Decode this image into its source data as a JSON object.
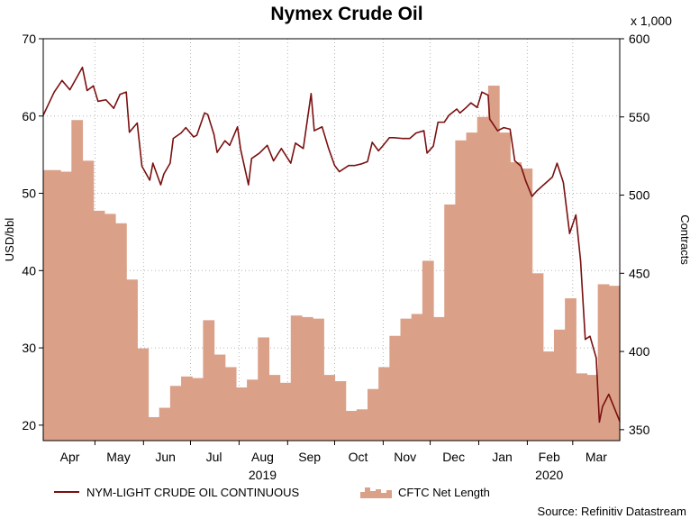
{
  "chart_data": {
    "type": "line+bar",
    "title": "Nymex Crude Oil",
    "left_axis": {
      "label": "USD/bbl",
      "range": [
        18,
        70
      ],
      "ticks": [
        20,
        30,
        40,
        50,
        60,
        70
      ]
    },
    "right_axis": {
      "label": "Contracts",
      "multiplier_label": "x 1,000",
      "range": [
        343,
        600
      ],
      "ticks": [
        350,
        400,
        450,
        500,
        550,
        600
      ]
    },
    "x_axis": {
      "start": "2019-03-29",
      "end": "2020-03-31",
      "months": [
        {
          "label": "Apr",
          "date": "2019-04-15"
        },
        {
          "label": "May",
          "date": "2019-05-16"
        },
        {
          "label": "Jun",
          "date": "2019-06-15"
        },
        {
          "label": "Jul",
          "date": "2019-07-16"
        },
        {
          "label": "Aug",
          "date": "2019-08-16"
        },
        {
          "label": "Sep",
          "date": "2019-09-15"
        },
        {
          "label": "Oct",
          "date": "2019-10-16"
        },
        {
          "label": "Nov",
          "date": "2019-11-15"
        },
        {
          "label": "Dec",
          "date": "2019-12-16"
        },
        {
          "label": "Jan",
          "date": "2020-01-16"
        },
        {
          "label": "Feb",
          "date": "2020-02-15"
        },
        {
          "label": "Mar",
          "date": "2020-03-16"
        }
      ],
      "month_boundaries": [
        "2019-05-01",
        "2019-06-01",
        "2019-07-01",
        "2019-08-01",
        "2019-09-01",
        "2019-10-01",
        "2019-11-01",
        "2019-12-01",
        "2020-01-01",
        "2020-02-01",
        "2020-03-01"
      ],
      "years": [
        {
          "label": "2019",
          "date": "2019-08-16"
        },
        {
          "label": "2020",
          "date": "2020-02-15"
        }
      ]
    },
    "grid": true,
    "legend_position": "bottom",
    "series": [
      {
        "name": "NYM-LIGHT CRUDE OIL CONTINUOUS",
        "type": "line",
        "axis": "left",
        "color": "#7a1010",
        "points": [
          [
            "2019-03-29",
            60.1
          ],
          [
            "2019-04-05",
            63.1
          ],
          [
            "2019-04-10",
            64.6
          ],
          [
            "2019-04-15",
            63.4
          ],
          [
            "2019-04-23",
            66.3
          ],
          [
            "2019-04-26",
            63.3
          ],
          [
            "2019-04-30",
            63.9
          ],
          [
            "2019-05-03",
            61.9
          ],
          [
            "2019-05-08",
            62.1
          ],
          [
            "2019-05-13",
            61.0
          ],
          [
            "2019-05-17",
            62.8
          ],
          [
            "2019-05-21",
            63.1
          ],
          [
            "2019-05-23",
            57.9
          ],
          [
            "2019-05-28",
            59.1
          ],
          [
            "2019-05-31",
            53.5
          ],
          [
            "2019-06-05",
            51.7
          ],
          [
            "2019-06-07",
            53.9
          ],
          [
            "2019-06-12",
            51.1
          ],
          [
            "2019-06-14",
            52.5
          ],
          [
            "2019-06-18",
            53.9
          ],
          [
            "2019-06-20",
            57.1
          ],
          [
            "2019-06-25",
            57.8
          ],
          [
            "2019-06-28",
            58.5
          ],
          [
            "2019-07-03",
            57.3
          ],
          [
            "2019-07-05",
            57.5
          ],
          [
            "2019-07-10",
            60.4
          ],
          [
            "2019-07-12",
            60.2
          ],
          [
            "2019-07-16",
            57.6
          ],
          [
            "2019-07-18",
            55.3
          ],
          [
            "2019-07-23",
            56.8
          ],
          [
            "2019-07-26",
            56.2
          ],
          [
            "2019-07-31",
            58.6
          ],
          [
            "2019-08-02",
            55.7
          ],
          [
            "2019-08-07",
            51.1
          ],
          [
            "2019-08-09",
            54.5
          ],
          [
            "2019-08-14",
            55.2
          ],
          [
            "2019-08-19",
            56.2
          ],
          [
            "2019-08-23",
            54.2
          ],
          [
            "2019-08-28",
            55.8
          ],
          [
            "2019-09-03",
            53.9
          ],
          [
            "2019-09-06",
            56.5
          ],
          [
            "2019-09-11",
            55.8
          ],
          [
            "2019-09-16",
            62.9
          ],
          [
            "2019-09-18",
            58.1
          ],
          [
            "2019-09-23",
            58.6
          ],
          [
            "2019-09-27",
            55.9
          ],
          [
            "2019-10-01",
            53.6
          ],
          [
            "2019-10-04",
            52.8
          ],
          [
            "2019-10-10",
            53.6
          ],
          [
            "2019-10-14",
            53.6
          ],
          [
            "2019-10-18",
            53.8
          ],
          [
            "2019-10-22",
            54.1
          ],
          [
            "2019-10-25",
            56.6
          ],
          [
            "2019-10-29",
            55.5
          ],
          [
            "2019-11-01",
            56.2
          ],
          [
            "2019-11-05",
            57.2
          ],
          [
            "2019-11-08",
            57.2
          ],
          [
            "2019-11-13",
            57.1
          ],
          [
            "2019-11-18",
            57.1
          ],
          [
            "2019-11-22",
            57.8
          ],
          [
            "2019-11-27",
            58.1
          ],
          [
            "2019-11-29",
            55.2
          ],
          [
            "2019-12-03",
            56.1
          ],
          [
            "2019-12-06",
            59.2
          ],
          [
            "2019-12-10",
            59.2
          ],
          [
            "2019-12-13",
            60.1
          ],
          [
            "2019-12-18",
            60.9
          ],
          [
            "2019-12-20",
            60.4
          ],
          [
            "2019-12-24",
            61.1
          ],
          [
            "2019-12-27",
            61.7
          ],
          [
            "2019-12-31",
            61.1
          ],
          [
            "2020-01-03",
            63.1
          ],
          [
            "2020-01-07",
            62.7
          ],
          [
            "2020-01-08",
            59.6
          ],
          [
            "2020-01-13",
            58.1
          ],
          [
            "2020-01-17",
            58.5
          ],
          [
            "2020-01-21",
            58.3
          ],
          [
            "2020-01-24",
            54.2
          ],
          [
            "2020-01-28",
            53.5
          ],
          [
            "2020-01-31",
            51.6
          ],
          [
            "2020-02-04",
            49.6
          ],
          [
            "2020-02-07",
            50.3
          ],
          [
            "2020-02-12",
            51.2
          ],
          [
            "2020-02-17",
            52.1
          ],
          [
            "2020-02-20",
            53.9
          ],
          [
            "2020-02-24",
            51.4
          ],
          [
            "2020-02-28",
            44.8
          ],
          [
            "2020-03-03",
            47.2
          ],
          [
            "2020-03-06",
            41.3
          ],
          [
            "2020-03-09",
            31.1
          ],
          [
            "2020-03-12",
            31.5
          ],
          [
            "2020-03-16",
            28.7
          ],
          [
            "2020-03-18",
            20.4
          ],
          [
            "2020-03-20",
            22.4
          ],
          [
            "2020-03-24",
            24.0
          ],
          [
            "2020-03-31",
            20.5
          ]
        ]
      },
      {
        "name": "CFTC Net Length",
        "type": "step-area",
        "axis": "right",
        "color": "#dba088",
        "steps": [
          [
            "2019-03-29",
            516
          ],
          [
            "2019-04-09",
            515
          ],
          [
            "2019-04-16",
            548
          ],
          [
            "2019-04-23",
            522
          ],
          [
            "2019-04-30",
            490
          ],
          [
            "2019-05-07",
            488
          ],
          [
            "2019-05-14",
            482
          ],
          [
            "2019-05-21",
            446
          ],
          [
            "2019-05-28",
            402
          ],
          [
            "2019-06-04",
            358
          ],
          [
            "2019-06-11",
            364
          ],
          [
            "2019-06-18",
            378
          ],
          [
            "2019-06-25",
            384
          ],
          [
            "2019-07-02",
            383
          ],
          [
            "2019-07-09",
            420
          ],
          [
            "2019-07-16",
            398
          ],
          [
            "2019-07-23",
            390
          ],
          [
            "2019-07-30",
            377
          ],
          [
            "2019-08-06",
            382
          ],
          [
            "2019-08-13",
            409
          ],
          [
            "2019-08-20",
            385
          ],
          [
            "2019-08-27",
            380
          ],
          [
            "2019-09-03",
            423
          ],
          [
            "2019-09-10",
            422
          ],
          [
            "2019-09-17",
            421
          ],
          [
            "2019-09-24",
            385
          ],
          [
            "2019-10-01",
            381
          ],
          [
            "2019-10-08",
            362
          ],
          [
            "2019-10-15",
            363
          ],
          [
            "2019-10-22",
            376
          ],
          [
            "2019-10-29",
            390
          ],
          [
            "2019-11-05",
            410
          ],
          [
            "2019-11-12",
            421
          ],
          [
            "2019-11-19",
            424
          ],
          [
            "2019-11-26",
            458
          ],
          [
            "2019-12-03",
            422
          ],
          [
            "2019-12-10",
            494
          ],
          [
            "2019-12-17",
            535
          ],
          [
            "2019-12-24",
            540
          ],
          [
            "2019-12-31",
            550
          ],
          [
            "2020-01-07",
            570
          ],
          [
            "2020-01-14",
            540
          ],
          [
            "2020-01-21",
            521
          ],
          [
            "2020-01-28",
            517
          ],
          [
            "2020-02-04",
            450
          ],
          [
            "2020-02-11",
            400
          ],
          [
            "2020-02-18",
            414
          ],
          [
            "2020-02-25",
            434
          ],
          [
            "2020-03-03",
            386
          ],
          [
            "2020-03-10",
            385
          ],
          [
            "2020-03-17",
            443
          ],
          [
            "2020-03-24",
            442
          ],
          [
            "2020-03-31",
            486
          ]
        ]
      }
    ],
    "source": "Source: Refinitiv Datastream"
  }
}
